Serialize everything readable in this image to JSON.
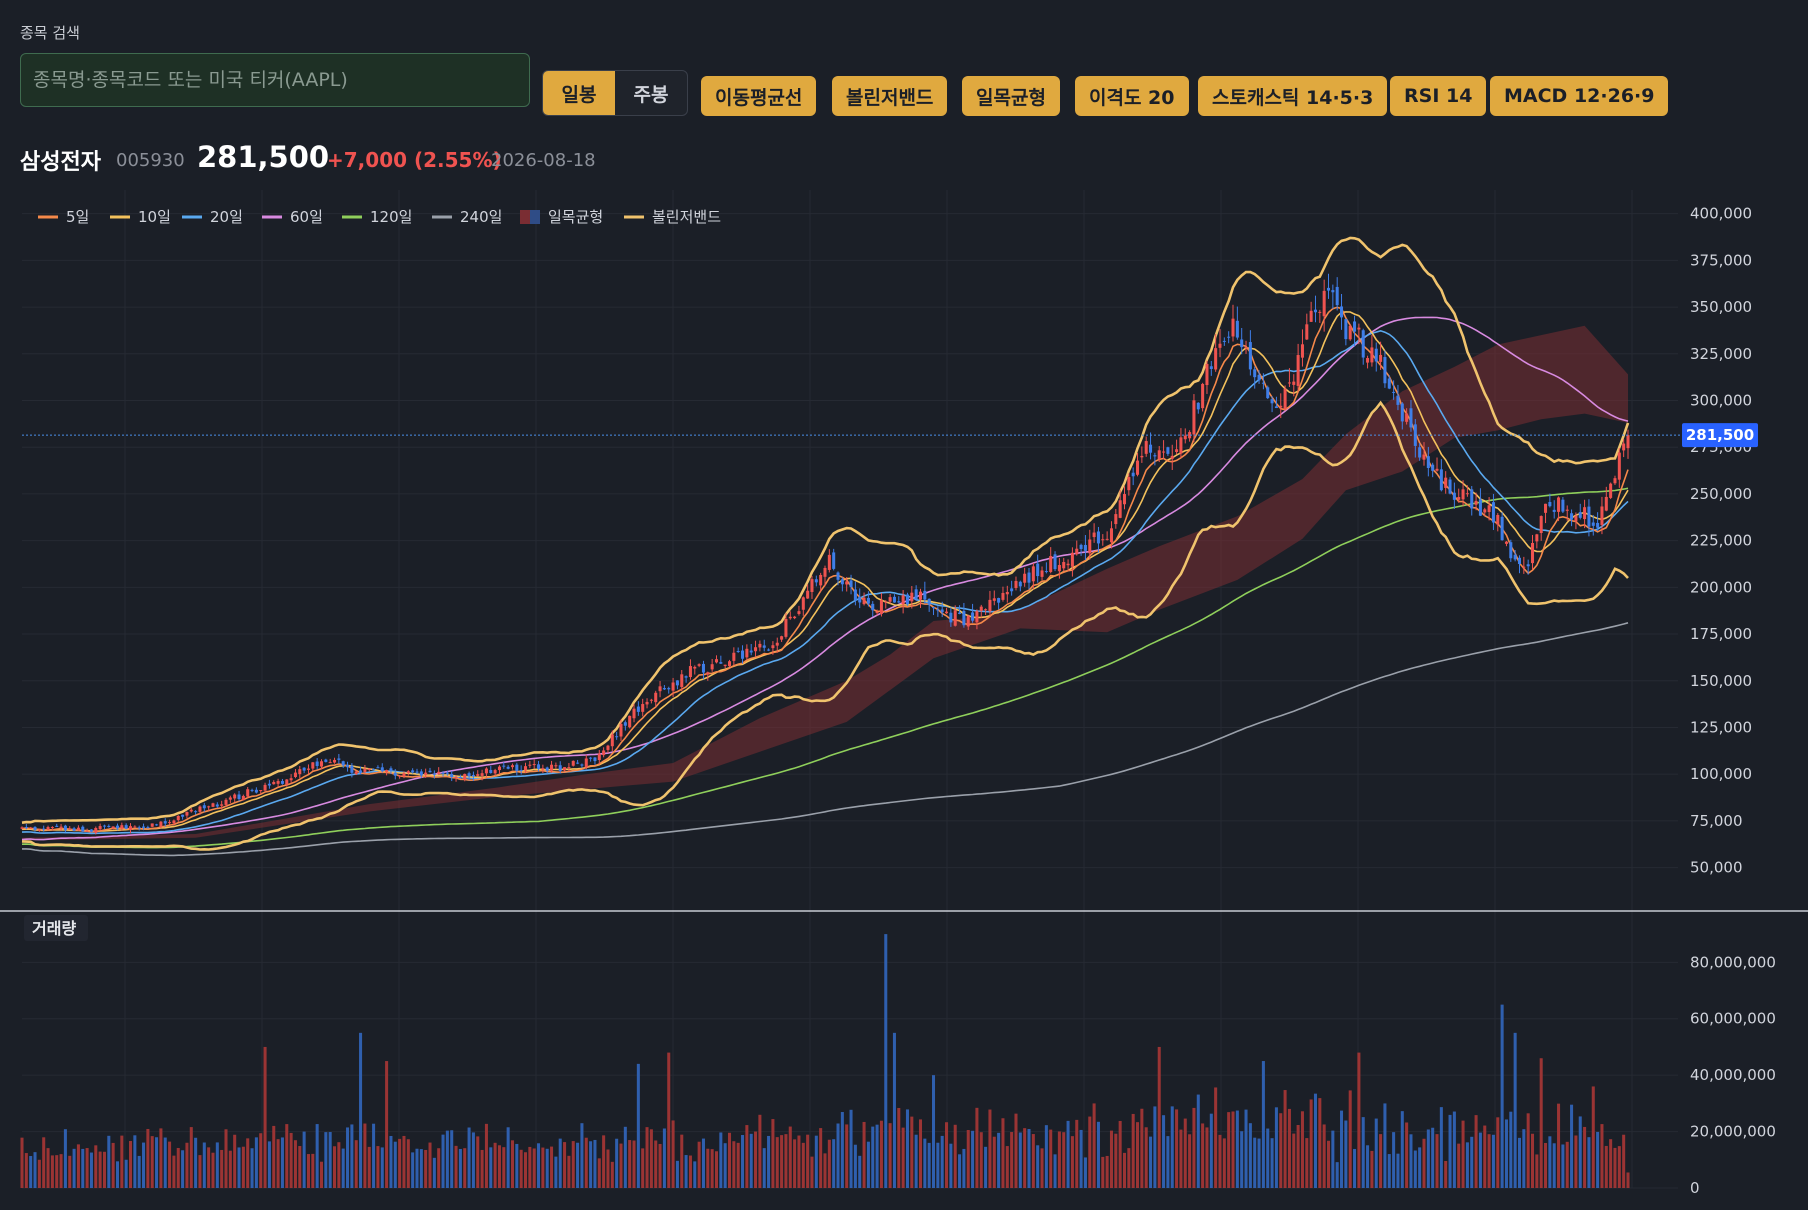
{
  "search": {
    "label": "종목 검색",
    "placeholder": "종목명·종목코드 또는 미국 티커(AAPL)"
  },
  "period": {
    "items": [
      "일봉",
      "주봉"
    ],
    "active": 0
  },
  "indicators": [
    "이동평균선",
    "볼린저밴드",
    "일목균형",
    "이격도 20",
    "스토캐스틱 14·5·3",
    "RSI 14",
    "MACD 12·26·9"
  ],
  "stock": {
    "name": "삼성전자",
    "code": "005930",
    "price": "281,500",
    "change": "+7,000 (2.55%)",
    "date": "2026-08-18"
  },
  "colors": {
    "up": "#ef5350",
    "down": "#3f7ee8",
    "accent": "#e0a93f",
    "current_price_badge": "#2962ff"
  },
  "chart_data": {
    "type": "candlestick",
    "price_axis": {
      "ylim": [
        38000,
        410000
      ],
      "ticks": [
        50000,
        75000,
        100000,
        125000,
        150000,
        175000,
        200000,
        225000,
        250000,
        275000,
        300000,
        325000,
        350000,
        375000,
        400000
      ]
    },
    "current_price": {
      "value": 281500,
      "label": "281,500"
    },
    "legend": [
      {
        "label": "5일",
        "color": "#f5894a",
        "type": "line"
      },
      {
        "label": "10일",
        "color": "#f3c15c",
        "type": "line"
      },
      {
        "label": "20일",
        "color": "#5aa9f0",
        "type": "line"
      },
      {
        "label": "60일",
        "color": "#d88ae0",
        "type": "line"
      },
      {
        "label": "120일",
        "color": "#8fcf5b",
        "type": "line"
      },
      {
        "label": "240일",
        "color": "#9aa0aa",
        "type": "line"
      },
      {
        "label": "일목균형",
        "color": "#6a2d30",
        "type": "box"
      },
      {
        "label": "볼린저밴드",
        "color": "#f0c36d",
        "type": "line"
      }
    ],
    "price_anchors": [
      [
        0,
        71000
      ],
      [
        10,
        70500
      ],
      [
        20,
        71000
      ],
      [
        28,
        71500
      ],
      [
        33,
        75000
      ],
      [
        42,
        82000
      ],
      [
        52,
        90000
      ],
      [
        60,
        96000
      ],
      [
        66,
        103000
      ],
      [
        70,
        108000
      ],
      [
        76,
        103000
      ],
      [
        85,
        101000
      ],
      [
        95,
        99000
      ],
      [
        105,
        101000
      ],
      [
        115,
        104000
      ],
      [
        125,
        104000
      ],
      [
        132,
        108000
      ],
      [
        140,
        130000
      ],
      [
        147,
        145000
      ],
      [
        154,
        155000
      ],
      [
        161,
        160000
      ],
      [
        166,
        165000
      ],
      [
        172,
        168000
      ],
      [
        177,
        182000
      ],
      [
        182,
        200000
      ],
      [
        186,
        215000
      ],
      [
        190,
        202000
      ],
      [
        196,
        188000
      ],
      [
        202,
        195000
      ],
      [
        208,
        195000
      ],
      [
        213,
        186000
      ],
      [
        218,
        183000
      ],
      [
        222,
        190000
      ],
      [
        228,
        198000
      ],
      [
        233,
        208000
      ],
      [
        240,
        216000
      ],
      [
        246,
        224000
      ],
      [
        250,
        226000
      ],
      [
        253,
        250000
      ],
      [
        258,
        275000
      ],
      [
        263,
        268000
      ],
      [
        267,
        275000
      ],
      [
        271,
        300000
      ],
      [
        275,
        330000
      ],
      [
        279,
        338000
      ],
      [
        284,
        312000
      ],
      [
        289,
        300000
      ],
      [
        293,
        315000
      ],
      [
        297,
        342000
      ],
      [
        301,
        355000
      ],
      [
        305,
        340000
      ],
      [
        309,
        330000
      ],
      [
        313,
        318000
      ],
      [
        317,
        298000
      ],
      [
        320,
        283000
      ],
      [
        323,
        272000
      ],
      [
        327,
        255000
      ],
      [
        331,
        250000
      ],
      [
        335,
        245000
      ],
      [
        339,
        240000
      ],
      [
        343,
        215000
      ],
      [
        347,
        215000
      ],
      [
        351,
        245000
      ],
      [
        355,
        242000
      ],
      [
        359,
        240000
      ],
      [
        363,
        232000
      ],
      [
        366,
        258000
      ],
      [
        369,
        275000
      ],
      [
        370,
        281500
      ]
    ],
    "ma_lines": {
      "ma5": [
        71000,
        263000
      ],
      "ma10": [
        70500,
        252000
      ],
      "ma20": [
        69000,
        246000
      ],
      "ma60": [
        65000,
        289000
      ],
      "ma120": [
        62500,
        253000
      ],
      "ma240": [
        60000,
        181000
      ]
    },
    "bollinger": {
      "upper": [
        74000,
        288000
      ],
      "lower": [
        64000,
        205000
      ]
    },
    "ichimoku_cloud": [
      [
        0,
        66000,
        64500
      ],
      [
        40,
        68000,
        66000
      ],
      [
        80,
        84000,
        80000
      ],
      [
        110,
        93000,
        88000
      ],
      [
        130,
        100000,
        92000
      ],
      [
        150,
        106000,
        96000
      ],
      [
        170,
        130000,
        112000
      ],
      [
        190,
        150000,
        128000
      ],
      [
        200,
        164000,
        145000
      ],
      [
        210,
        182000,
        162000
      ],
      [
        220,
        184000,
        170000
      ],
      [
        230,
        188000,
        178000
      ],
      [
        250,
        210000,
        176000
      ],
      [
        262,
        222000,
        188000
      ],
      [
        280,
        238000,
        204000
      ],
      [
        295,
        258000,
        226000
      ],
      [
        305,
        282000,
        252000
      ],
      [
        318,
        305000,
        262000
      ],
      [
        330,
        318000,
        280000
      ],
      [
        340,
        330000,
        284000
      ],
      [
        350,
        335000,
        290000
      ],
      [
        360,
        340000,
        293000
      ],
      [
        370,
        314000,
        288000
      ]
    ],
    "volume_panel": {
      "label": "거래량",
      "ylim": [
        0,
        95000000
      ],
      "ticks": [
        0,
        20000000,
        40000000,
        60000000,
        80000000
      ],
      "tick_labels": [
        "0",
        "20,000,000",
        "40,000,000",
        "60,000,000",
        "80,000,000"
      ],
      "spikes": [
        [
          56,
          50000000
        ],
        [
          78,
          55000000
        ],
        [
          84,
          45000000
        ],
        [
          142,
          44000000
        ],
        [
          149,
          48000000
        ],
        [
          199,
          90000000
        ],
        [
          201,
          55000000
        ],
        [
          210,
          40000000
        ],
        [
          262,
          50000000
        ],
        [
          286,
          45000000
        ],
        [
          308,
          48000000
        ],
        [
          341,
          65000000
        ],
        [
          344,
          55000000
        ],
        [
          350,
          46000000
        ],
        [
          362,
          36000000
        ]
      ]
    },
    "n_candles": 371,
    "seed": 20260818
  }
}
